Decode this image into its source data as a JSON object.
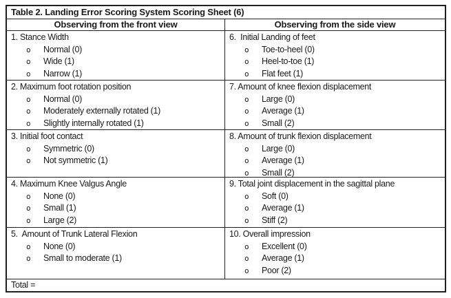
{
  "page": {
    "title_row": "Table 2. Landing Error Scoring System Scoring Sheet (6)",
    "bullet_glyph": "o",
    "total_label": "Total =",
    "columns": {
      "front": {
        "header": "Observing from the front view",
        "items": [
          {
            "label": "1. Stance Width",
            "options": [
              "Normal (0)",
              "Wide (1)",
              "Narrow (1)"
            ]
          },
          {
            "label": "2. Maximum foot rotation position",
            "options": [
              "Normal (0)",
              "Moderately externally rotated (1)",
              "Slightly internally rotated (1)"
            ]
          },
          {
            "label": "3. Initial foot contact",
            "options": [
              "Symmetric (0)",
              "Not symmetric (1)"
            ]
          },
          {
            "label": "4. Maximum Knee Valgus Angle",
            "options": [
              "None (0)",
              "Small (1)",
              "Large (2)"
            ]
          },
          {
            "label": "5.  Amount of Trunk Lateral Flexion",
            "options": [
              "None (0)",
              "Small to moderate (1)"
            ]
          }
        ]
      },
      "side": {
        "header": "Observing from the side view",
        "items": [
          {
            "label": "6.  Initial Landing of feet",
            "options": [
              "Toe-to-heel (0)",
              "Heel-to-toe (1)",
              "Flat feet (1)"
            ]
          },
          {
            "label": "7. Amount of knee flexion displacement",
            "options": [
              "Large (0)",
              "Average (1)",
              "Small (2)"
            ]
          },
          {
            "label": "8. Amount of trunk flexion displacement",
            "options": [
              "Large (0)",
              "Average (1)",
              "Small (2)"
            ]
          },
          {
            "label": "9. Total joint displacement in the sagittal plane",
            "options": [
              "Soft (0)",
              "Average (1)",
              "Stiff (2)"
            ]
          },
          {
            "label": "10. Overall impression",
            "options": [
              "Excellent (0)",
              "Average (1)",
              "Poor (2)"
            ]
          }
        ]
      }
    }
  }
}
